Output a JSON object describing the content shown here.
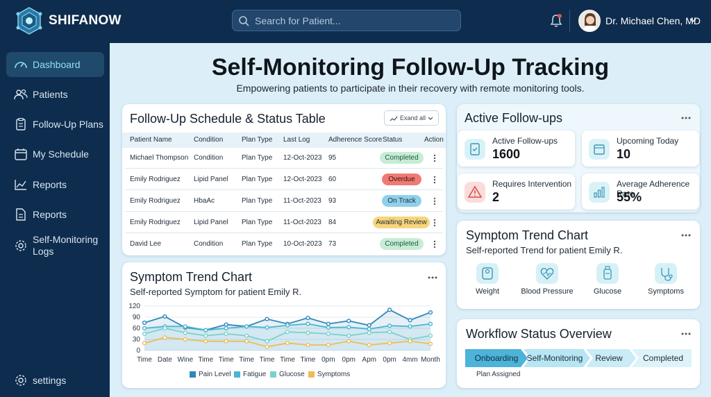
{
  "app": {
    "brand": "SHIFANOW"
  },
  "search": {
    "placeholder": "Search for Patient..."
  },
  "user": {
    "name": "Dr. Michael Chen, MD"
  },
  "sidebar": {
    "items": [
      {
        "label": "Dashboard",
        "icon": "gauge-icon"
      },
      {
        "label": "Patients",
        "icon": "users-icon"
      },
      {
        "label": "Follow-Up Plans",
        "icon": "clipboard-icon"
      },
      {
        "label": "My Schedule",
        "icon": "calendar-icon"
      },
      {
        "label": "Reports",
        "icon": "line-chart-icon"
      },
      {
        "label": "Reports",
        "icon": "document-icon"
      },
      {
        "label": "Self-Monitoring Logs",
        "icon": "gear-icon"
      }
    ],
    "settings_label": "settings"
  },
  "page": {
    "title": "Self-Monitoring Follow-Up Tracking",
    "subtitle": "Empowering patients to participate in their recovery with remote monitoring tools."
  },
  "schedule": {
    "title": "Follow-Up Schedule & Status Table",
    "expand_label": "Exand all",
    "columns": [
      "Patient Name",
      "Condition",
      "Plan Type",
      "Last Log",
      "Adherence Score",
      "Status",
      "Action"
    ],
    "rows": [
      {
        "name": "Michael Thompson",
        "condition": "Condition",
        "plan": "Plan Type",
        "last_log": "12-Oct-2023",
        "score": "95",
        "status": "Completed"
      },
      {
        "name": "Emily Rodriguez",
        "condition": "Lipid Panel",
        "plan": "Plan Type",
        "last_log": "12-Oct-2023",
        "score": "60",
        "status": "Overdue"
      },
      {
        "name": "Emily Rodriguez",
        "condition": "HbaAc",
        "plan": "Plan Type",
        "last_log": "11-Oct-2023",
        "score": "93",
        "status": "On Track"
      },
      {
        "name": "Emily Rodriguez",
        "condition": "Lipid Panel",
        "plan": "Plan Type",
        "last_log": "11-Oct-2023",
        "score": "84",
        "status": "Awaiting Review"
      },
      {
        "name": "David Lee",
        "condition": "Condition",
        "plan": "Plan Type",
        "last_log": "10-Oct-2023",
        "score": "73",
        "status": "Completed"
      }
    ],
    "status_colors": {
      "Completed": "#c7ecd6",
      "Overdue": "#f07b74",
      "On Track": "#8fd0ec",
      "Awaiting Review": "#f7d67a"
    }
  },
  "symptom_chart": {
    "title": "Symptom Trend Chart",
    "subtitle": "Self-reported Symptom for patient Emily R."
  },
  "chart_data": {
    "type": "line",
    "categories": [
      "Time",
      "Date",
      "Wine",
      "Time",
      "Time",
      "Time",
      "Time",
      "Time",
      "Time",
      "0pm",
      "0pm",
      "Apm",
      "0pm",
      "4mm",
      "Month"
    ],
    "yticks": [
      "120",
      "90",
      "60",
      "30",
      "0"
    ],
    "ylim": [
      0,
      120
    ],
    "grid": true,
    "legend_position": "bottom",
    "series": [
      {
        "name": "Pain Level",
        "color": "#2f86b8",
        "values": [
          75,
          92,
          62,
          55,
          70,
          65,
          85,
          72,
          88,
          72,
          80,
          68,
          110,
          82,
          103
        ]
      },
      {
        "name": "Fatigue",
        "color": "#49b6d0",
        "values": [
          60,
          65,
          65,
          55,
          60,
          65,
          62,
          68,
          72,
          62,
          63,
          58,
          67,
          65,
          72
        ]
      },
      {
        "name": "Glucose",
        "color": "#7cd0cc",
        "values": [
          45,
          60,
          48,
          40,
          45,
          40,
          25,
          50,
          48,
          45,
          40,
          48,
          50,
          30,
          40
        ]
      },
      {
        "name": "Symptoms",
        "color": "#f0bb55",
        "values": [
          20,
          35,
          30,
          25,
          25,
          25,
          10,
          20,
          15,
          15,
          25,
          15,
          20,
          25,
          18
        ]
      }
    ]
  },
  "active_followups": {
    "title": "Active Follow-ups",
    "stats": [
      {
        "label": "Active Follow-ups",
        "value": "1600",
        "icon": "clipboard-check-icon",
        "color": "#d9f2f8"
      },
      {
        "label": "Upcoming Today",
        "value": "10",
        "icon": "calendar-icon",
        "color": "#d9f2f8"
      },
      {
        "label": "Requires Intervention",
        "value": "2",
        "icon": "warning-icon",
        "color": "#fbdcdc"
      },
      {
        "label": "Average Adherence Rate",
        "value": "55%",
        "icon": "bar-chart-icon",
        "color": "#d9f2f8"
      }
    ]
  },
  "trend_card": {
    "title": "Symptom Trend Chart",
    "subtitle": "Self-reported Trend for patient Emily R.",
    "metrics": [
      {
        "label": "Weight",
        "icon": "scale-icon"
      },
      {
        "label": "Blood Pressure",
        "icon": "heart-pulse-icon"
      },
      {
        "label": "Glucose",
        "icon": "glucose-meter-icon"
      },
      {
        "label": "Symptoms",
        "icon": "stethoscope-icon"
      }
    ]
  },
  "workflow": {
    "title": "Workflow Status Overview",
    "steps": [
      "Onboarding",
      "Self-Monitoring",
      "Review",
      "Completed"
    ],
    "caption": "Plan Assigned"
  }
}
